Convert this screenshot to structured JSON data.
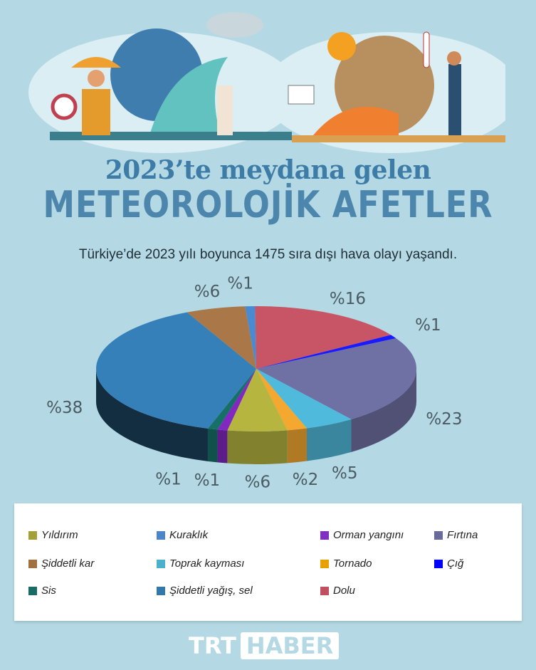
{
  "title_line1": "2023’te meydana gelen",
  "title_line2": "METEOROLOJİK AFETLER",
  "subtitle": "Türkiye’de 2023 yılı boyunca 1475 sıra dışı hava olayı yaşandı.",
  "logo": {
    "part1": "TRT",
    "part2": "HABER"
  },
  "chart_data": {
    "type": "pie",
    "style": "3d",
    "unit_prefix": "%",
    "slices": [
      {
        "name": "Kuraklık",
        "value": 1,
        "label": "%1",
        "color": "#4a8ad0"
      },
      {
        "name": "Dolu",
        "value": 16,
        "label": "%16",
        "color": "#c85565"
      },
      {
        "name": "Çığ",
        "value": 1,
        "label": "%1",
        "color": "#1a1aff"
      },
      {
        "name": "Fırtına",
        "value": 23,
        "label": "%23",
        "color": "#6f70a3"
      },
      {
        "name": "Toprak kayması",
        "value": 5,
        "label": "%5",
        "color": "#4fbadb"
      },
      {
        "name": "Tornado",
        "value": 2,
        "label": "%2",
        "color": "#f5a830"
      },
      {
        "name": "Yıldırım",
        "value": 6,
        "label": "%6",
        "color": "#b5b540"
      },
      {
        "name": "Orman yangını",
        "value": 1,
        "label": "%1",
        "color": "#8028c0"
      },
      {
        "name": "Sis",
        "value": 1,
        "label": "%1",
        "color": "#167068"
      },
      {
        "name": "Şiddetli yağış, sel",
        "value": 38,
        "label": "%38",
        "color": "#3680ba"
      },
      {
        "name": "Şiddetli kar",
        "value": 6,
        "label": "%6",
        "color": "#aa7848"
      }
    ]
  },
  "legend": [
    {
      "label": "Yıldırım",
      "color": "#a3a03a"
    },
    {
      "label": "Şiddetli kar",
      "color": "#a0703f"
    },
    {
      "label": "Sis",
      "color": "#1a6b66"
    },
    {
      "label": "Kuraklık",
      "color": "#4a86c8"
    },
    {
      "label": "Toprak kayması",
      "color": "#4ab0cc"
    },
    {
      "label": "Şiddetli yağış, sel",
      "color": "#3278a8"
    },
    {
      "label": "Orman yangını",
      "color": "#8030c0"
    },
    {
      "label": "Tornado",
      "color": "#e8a000"
    },
    {
      "label": "Dolu",
      "color": "#c05060"
    },
    {
      "label": "Fırtına",
      "color": "#6a6a9a"
    },
    {
      "label": "Çığ",
      "color": "#0000ff"
    }
  ]
}
